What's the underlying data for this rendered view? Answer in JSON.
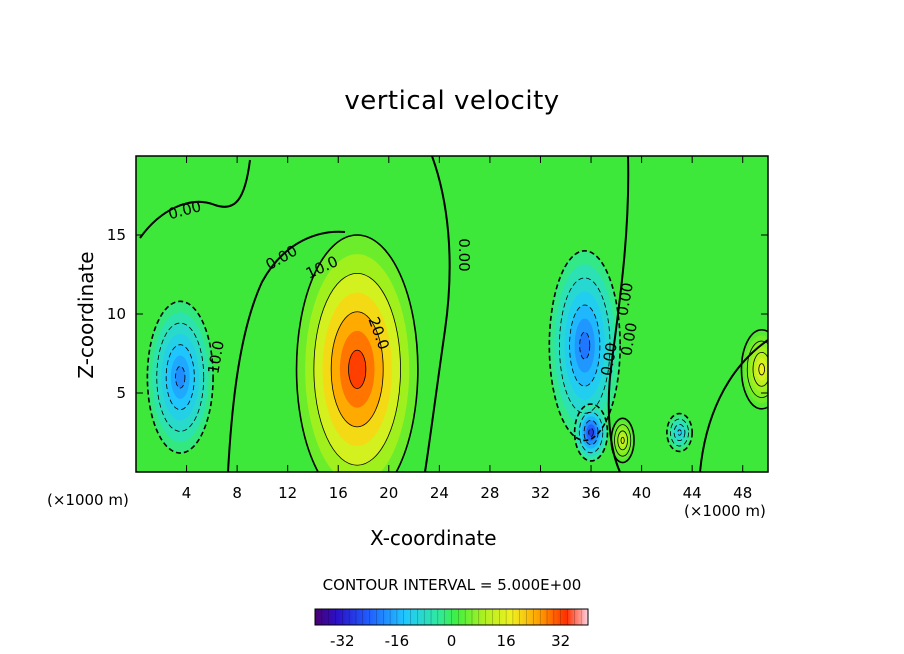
{
  "chart_data": {
    "type": "heatmap",
    "title": "vertical velocity",
    "xlabel": "X-coordinate",
    "ylabel": "Z-coordinate",
    "x_unit": "(×1000 m)",
    "xlim": [
      0,
      50
    ],
    "ylim": [
      0,
      20
    ],
    "x_ticks": [
      4,
      8,
      12,
      16,
      20,
      24,
      28,
      32,
      36,
      40,
      44,
      48
    ],
    "y_ticks": [
      5,
      10,
      15
    ],
    "contour_interval_label": "CONTOUR INTERVAL = 5.000E+00",
    "colorbar": {
      "ticks": [
        -32,
        -16,
        0,
        16,
        32
      ],
      "range": [
        -40,
        40
      ]
    },
    "contour_labels": [
      "0.00",
      "0.00",
      "10.0",
      "20.0",
      "0.00",
      "10.0",
      "0.00",
      "0.00",
      "0.00"
    ],
    "features": [
      {
        "kind": "updraft",
        "x": 17.5,
        "z": 6.5,
        "value": 24
      },
      {
        "kind": "downdraft",
        "x": 3.5,
        "z": 6.0,
        "value": -20
      },
      {
        "kind": "downdraft",
        "x": 35.5,
        "z": 8.0,
        "value": -22
      },
      {
        "kind": "downdraft",
        "x": 36.0,
        "z": 2.5,
        "value": -28
      },
      {
        "kind": "updraft",
        "x": 49.5,
        "z": 6.5,
        "value": 12
      },
      {
        "kind": "updraft",
        "x": 38.5,
        "z": 2.0,
        "value": 10
      },
      {
        "kind": "downdraft",
        "x": 43.0,
        "z": 2.5,
        "value": -12
      }
    ]
  }
}
